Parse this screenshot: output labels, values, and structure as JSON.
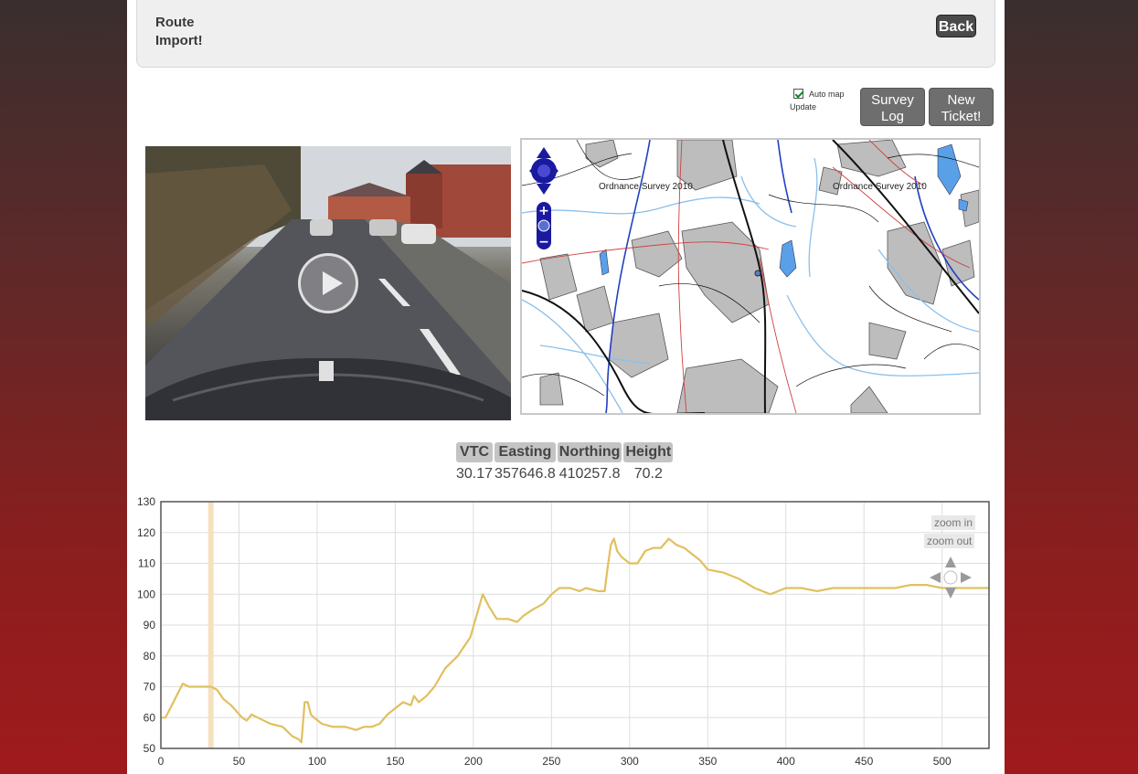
{
  "header": {
    "title_line1": "Route",
    "title_line2": "Import!",
    "back_label": "Back"
  },
  "toolbar": {
    "automap_label": "Auto map",
    "automap_label2": "Update",
    "automap_checked": true,
    "survey_label1": "Survey",
    "survey_label2": "Log",
    "ticket_label1": "New",
    "ticket_label2": "Ticket!"
  },
  "map": {
    "credit1": "Ordnance Survey 2010",
    "credit2": "Ordnance Survey 2010",
    "controls": [
      "pan-control",
      "zoom-in",
      "world-icon",
      "zoom-out"
    ]
  },
  "position_table": {
    "headers": [
      "VTC",
      "Easting",
      "Northing",
      "Height"
    ],
    "values": [
      "30.17",
      "357646.8",
      "410257.8",
      "70.2"
    ]
  },
  "chart_controls": {
    "zoom_in": "zoom in",
    "zoom_out": "zoom out"
  },
  "chart_data": {
    "type": "line",
    "title": "",
    "xlabel": "",
    "ylabel": "",
    "xlim": [
      0,
      530
    ],
    "ylim": [
      50,
      130
    ],
    "xticks": [
      0,
      50,
      100,
      150,
      200,
      250,
      300,
      350,
      400,
      450,
      500
    ],
    "yticks": [
      50,
      60,
      70,
      80,
      90,
      100,
      110,
      120,
      130
    ],
    "grid": true,
    "line_color": "#e0c060",
    "marker_x": 32,
    "marker_color": "#f5e0c0",
    "series": [
      {
        "x": [
          0,
          3,
          8,
          14,
          18,
          25,
          32,
          36,
          40,
          45,
          52,
          55,
          58,
          62,
          70,
          78,
          80,
          84,
          88,
          90,
          92,
          94,
          96,
          98,
          103,
          110,
          118,
          125,
          130,
          135,
          140,
          145,
          150,
          155,
          160,
          162,
          165,
          170,
          175,
          182,
          190,
          198,
          202,
          206,
          210,
          215,
          222,
          228,
          232,
          238,
          245,
          250,
          255,
          258,
          262,
          268,
          272,
          280,
          284,
          286,
          288,
          290,
          292,
          295,
          300,
          305,
          310,
          315,
          320,
          325,
          330,
          335,
          340,
          345,
          350,
          360,
          370,
          380,
          390,
          400,
          410,
          420,
          430,
          440,
          450,
          460,
          470,
          480,
          490,
          500,
          510,
          520,
          530
        ],
        "y": [
          60,
          60,
          65,
          71,
          70,
          70,
          70,
          69,
          66,
          64,
          60,
          59,
          61,
          60,
          58,
          57,
          56,
          54,
          53,
          52,
          65,
          65,
          61,
          60,
          58,
          57,
          57,
          56,
          57,
          57,
          58,
          61,
          63,
          65,
          64,
          67,
          65,
          67,
          70,
          76,
          80,
          86,
          93,
          100,
          96,
          92,
          92,
          91,
          93,
          95,
          97,
          100,
          102,
          102,
          102,
          101,
          102,
          101,
          101,
          109,
          116,
          118,
          114,
          112,
          110,
          110,
          114,
          115,
          115,
          118,
          116,
          115,
          113,
          111,
          108,
          107,
          105,
          102,
          100,
          102,
          102,
          101,
          102,
          102,
          102,
          102,
          102,
          103,
          103,
          102,
          102,
          102,
          102
        ]
      }
    ]
  }
}
